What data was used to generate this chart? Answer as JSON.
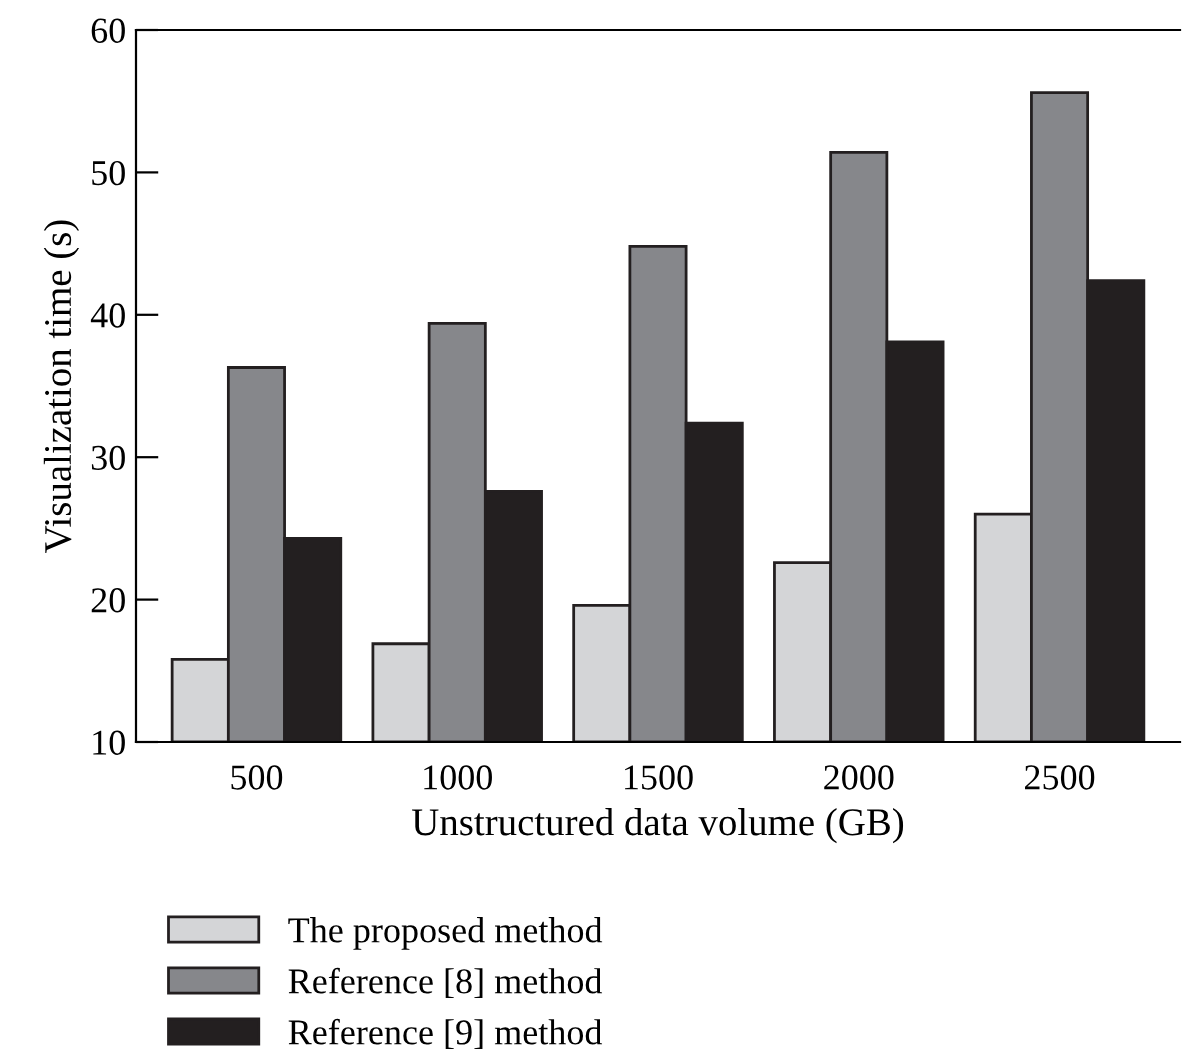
{
  "chart_data": {
    "type": "bar",
    "xlabel": "Unstructured data volume (GB)",
    "ylabel": "Visualization time (s)",
    "categories": [
      "500",
      "1000",
      "1500",
      "2000",
      "2500"
    ],
    "series": [
      {
        "name": "The proposed method",
        "color": "#d4d5d7",
        "values": [
          15.8,
          16.9,
          19.6,
          22.6,
          26.0
        ]
      },
      {
        "name": "Reference [8] method",
        "color": "#86878b",
        "values": [
          36.3,
          39.4,
          44.8,
          51.4,
          55.6
        ]
      },
      {
        "name": "Reference [9] method",
        "color": "#231f20",
        "values": [
          24.3,
          27.6,
          32.4,
          38.1,
          42.4
        ]
      }
    ],
    "ylim": [
      10,
      60
    ],
    "yticks": [
      10,
      20,
      30,
      40,
      50,
      60
    ],
    "grid": false,
    "legend": "bottom"
  }
}
